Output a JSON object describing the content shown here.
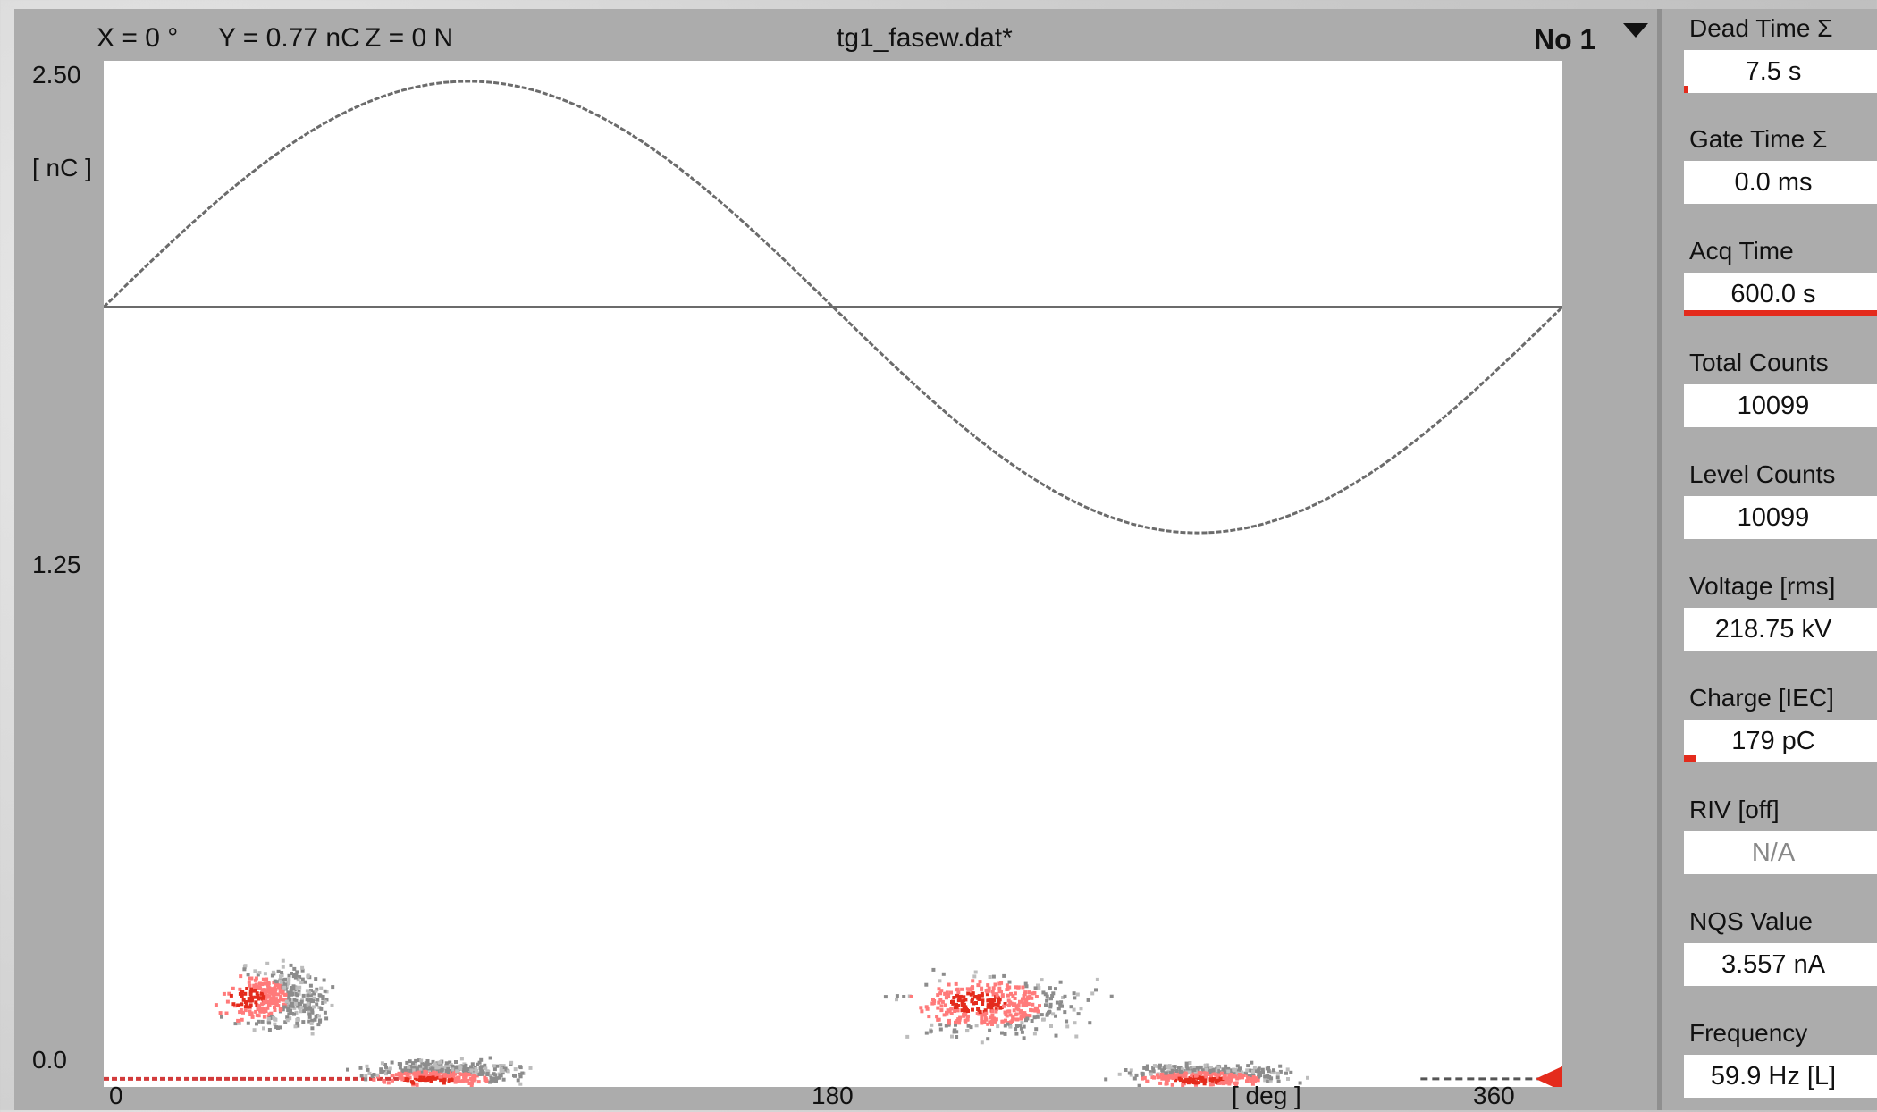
{
  "header": {
    "x_readout": "X =  0 °",
    "y_readout": "Y = 0.77 nC",
    "z_readout": "Z =  0 N",
    "file_name": "tg1_fasew.dat*",
    "dropdown_value": "No 1"
  },
  "chart_data": {
    "type": "scatter",
    "title": "",
    "xlabel": "[ deg ]",
    "ylabel": "[ nC ]",
    "xlim": [
      0,
      360
    ],
    "ylim": [
      0.0,
      2.5
    ],
    "x_ticks": [
      "0",
      "180",
      "360"
    ],
    "y_ticks": [
      "2.50",
      "1.25",
      "0.0"
    ],
    "grid": false,
    "reference_sine": {
      "amplitude": 0.55,
      "offset": 1.9,
      "period_deg": 360
    },
    "pd_clusters": [
      {
        "name": "cluster-1",
        "x_deg": [
          25,
          60
        ],
        "y_nc": [
          0.12,
          0.32
        ],
        "peak_x": 35,
        "peak_y": 0.22
      },
      {
        "name": "cluster-2",
        "x_deg": [
          57,
          110
        ],
        "y_nc": [
          0.0,
          0.08
        ],
        "peak_x": 80,
        "peak_y": 0.02
      },
      {
        "name": "cluster-3",
        "x_deg": [
          190,
          250
        ],
        "y_nc": [
          0.1,
          0.3
        ],
        "peak_x": 215,
        "peak_y": 0.21
      },
      {
        "name": "cluster-4",
        "x_deg": [
          245,
          300
        ],
        "y_nc": [
          0.0,
          0.07
        ],
        "peak_x": 270,
        "peak_y": 0.02
      }
    ],
    "baseline_trace": {
      "x_deg": [
        0,
        75,
        325,
        360
      ],
      "y_nc": [
        0.02,
        0.02,
        0.02,
        0.02
      ]
    },
    "marker_level_nc": 0.02
  },
  "sidebar": {
    "metrics": [
      {
        "label": "Dead Time Σ",
        "value": "7.5 s",
        "indicator": "small-red"
      },
      {
        "label": "Gate Time  Σ",
        "value": "0.0 ms",
        "indicator": "none"
      },
      {
        "label": "Acq Time",
        "value": "600.0 s",
        "indicator": "full-red"
      },
      {
        "label": "Total Counts",
        "value": "10099",
        "indicator": "none"
      },
      {
        "label": "Level Counts",
        "value": "10099",
        "indicator": "none"
      },
      {
        "label": "Voltage [rms]",
        "value": "218.75 kV",
        "indicator": "none"
      },
      {
        "label": "Charge [IEC]",
        "value": "179 pC",
        "indicator": "small-red"
      },
      {
        "label": "RIV [off]",
        "value": "N/A",
        "indicator": "none"
      },
      {
        "label": "NQS Value",
        "value": "3.557 nA",
        "indicator": "none"
      },
      {
        "label": "Frequency",
        "value": "59.9 Hz [L]",
        "indicator": "none"
      }
    ]
  },
  "colors": {
    "panel_bg": "#acacac",
    "plot_bg": "#ffffff",
    "trace": "#6b6b6b",
    "pd_red": "#e42b1c",
    "pd_gray": "#8c8c8c",
    "pd_light": "#ff7a7a"
  }
}
